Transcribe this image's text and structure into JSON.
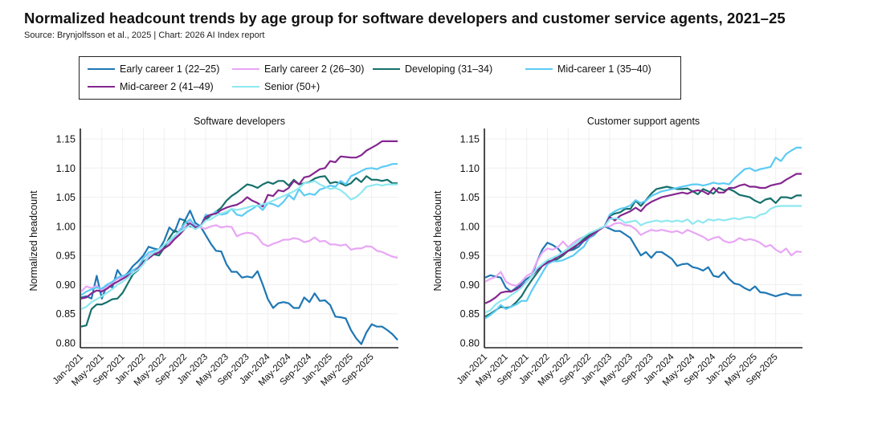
{
  "header": {
    "title": "Normalized headcount trends by age group for software developers and customer service agents, 2021–25",
    "subtitle": "Source: Brynjolfsson et al., 2025 | Chart: 2026 AI Index report"
  },
  "legend": {
    "placement": "top",
    "items": [
      {
        "label": "Early career 1 (22–25)",
        "color": "#1f77b4"
      },
      {
        "label": "Early career 2 (26–30)",
        "color": "#e8a6f5"
      },
      {
        "label": "Developing (31–34)",
        "color": "#16706b"
      },
      {
        "label": "Mid-career 1 (35–40)",
        "color": "#5ccbf5"
      },
      {
        "label": "Mid-career 2 (41–49)",
        "color": "#84278f"
      },
      {
        "label": "Senior (50+)",
        "color": "#8ee8f0"
      }
    ]
  },
  "chart_data": [
    {
      "type": "line",
      "title": "Software developers",
      "xlabel": "",
      "ylabel": "Normalized headcount",
      "ylim": [
        0.79,
        1.16
      ],
      "yticks": [
        "0.80",
        "0.85",
        "0.90",
        "0.95",
        "1.00",
        "1.05",
        "1.10",
        "1.15"
      ],
      "ytick_values": [
        0.8,
        0.85,
        0.9,
        0.95,
        1.0,
        1.05,
        1.1,
        1.15
      ],
      "xtick_labels": [
        "Jan-2021",
        "May-2021",
        "Sep-2021",
        "Jan-2022",
        "May-2022",
        "Sep-2022",
        "Jan-2023",
        "May-2023",
        "Sep-2023",
        "Jan-2024",
        "May-2024",
        "Sep-2024",
        "Jan-2025",
        "May-2025",
        "Sep-2025"
      ],
      "x_start": "Jan-2021",
      "x_end": "Dec-2025",
      "grid": true,
      "series": [
        {
          "name": "Early career 1 (22–25)",
          "values": [
            0.878,
            0.88,
            0.876,
            0.915,
            0.876,
            0.9,
            0.895,
            0.925,
            0.912,
            0.92,
            0.932,
            0.94,
            0.95,
            0.965,
            0.962,
            0.96,
            0.975,
            0.998,
            0.99,
            1.013,
            1.01,
            1.027,
            1.006,
            1.0,
            0.985,
            0.97,
            0.958,
            0.957,
            0.935,
            0.922,
            0.922,
            0.912,
            0.914,
            0.912,
            0.923,
            0.9,
            0.875,
            0.86,
            0.868,
            0.87,
            0.868,
            0.86,
            0.86,
            0.878,
            0.87,
            0.885,
            0.872,
            0.873,
            0.865,
            0.845,
            0.844,
            0.842,
            0.822,
            0.808,
            0.798,
            0.818,
            0.832,
            0.828,
            0.828,
            0.822,
            0.815,
            0.805
          ]
        },
        {
          "name": "Early career 2 (26–30)",
          "values": [
            0.888,
            0.897,
            0.894,
            0.898,
            0.89,
            0.896,
            0.903,
            0.91,
            0.912,
            0.915,
            0.92,
            0.928,
            0.935,
            0.95,
            0.955,
            0.958,
            0.965,
            0.972,
            0.98,
            0.995,
            0.998,
            1.01,
            1.002,
            0.998,
            0.996,
            1.0,
            1.002,
            0.998,
            1.0,
            0.999,
            0.983,
            0.987,
            0.989,
            0.988,
            0.982,
            0.97,
            0.966,
            0.97,
            0.973,
            0.977,
            0.977,
            0.98,
            0.978,
            0.973,
            0.975,
            0.981,
            0.974,
            0.975,
            0.969,
            0.969,
            0.967,
            0.969,
            0.96,
            0.962,
            0.962,
            0.966,
            0.965,
            0.958,
            0.956,
            0.952,
            0.948,
            0.946
          ]
        },
        {
          "name": "Developing (31–34)",
          "values": [
            0.828,
            0.83,
            0.858,
            0.866,
            0.866,
            0.87,
            0.875,
            0.876,
            0.886,
            0.902,
            0.918,
            0.925,
            0.94,
            0.945,
            0.952,
            0.95,
            0.963,
            0.98,
            0.993,
            0.988,
            1.01,
            1.0,
            0.998,
            1.0,
            1.012,
            1.018,
            1.025,
            1.032,
            1.044,
            1.052,
            1.058,
            1.065,
            1.072,
            1.07,
            1.066,
            1.072,
            1.076,
            1.073,
            1.078,
            1.078,
            1.07,
            1.08,
            1.072,
            1.074,
            1.076,
            1.082,
            1.085,
            1.086,
            1.074,
            1.076,
            1.074,
            1.07,
            1.074,
            1.083,
            1.076,
            1.086,
            1.08,
            1.08,
            1.078,
            1.08,
            1.074,
            1.074
          ]
        },
        {
          "name": "Mid-career 1 (35–40)",
          "values": [
            0.882,
            0.888,
            0.892,
            0.895,
            0.893,
            0.9,
            0.905,
            0.912,
            0.915,
            0.918,
            0.925,
            0.93,
            0.945,
            0.955,
            0.958,
            0.96,
            0.968,
            0.975,
            0.983,
            0.992,
            1.005,
            1.012,
            1.0,
            1.0,
            1.02,
            1.018,
            1.026,
            1.02,
            1.022,
            1.03,
            1.02,
            1.018,
            1.025,
            1.03,
            1.036,
            1.028,
            1.04,
            1.038,
            1.034,
            1.042,
            1.054,
            1.046,
            1.064,
            1.053,
            1.056,
            1.054,
            1.063,
            1.066,
            1.07,
            1.068,
            1.078,
            1.072,
            1.086,
            1.09,
            1.095,
            1.099,
            1.1,
            1.098,
            1.102,
            1.104,
            1.107,
            1.107
          ]
        },
        {
          "name": "Mid-career 2 (41–49)",
          "values": [
            0.876,
            0.878,
            0.885,
            0.89,
            0.888,
            0.893,
            0.9,
            0.905,
            0.91,
            0.915,
            0.92,
            0.928,
            0.938,
            0.945,
            0.952,
            0.955,
            0.962,
            0.968,
            0.978,
            0.986,
            0.996,
            1.005,
            0.998,
            1.0,
            1.016,
            1.02,
            1.022,
            1.028,
            1.032,
            1.035,
            1.037,
            1.042,
            1.05,
            1.044,
            1.04,
            1.034,
            1.054,
            1.052,
            1.062,
            1.06,
            1.066,
            1.078,
            1.072,
            1.084,
            1.086,
            1.092,
            1.098,
            1.1,
            1.112,
            1.11,
            1.12,
            1.119,
            1.118,
            1.118,
            1.122,
            1.13,
            1.135,
            1.14,
            1.146,
            1.146,
            1.146,
            1.146
          ]
        },
        {
          "name": "Senior (50+)",
          "values": [
            0.858,
            0.862,
            0.87,
            0.875,
            0.88,
            0.886,
            0.892,
            0.9,
            0.905,
            0.912,
            0.92,
            0.926,
            0.935,
            0.948,
            0.955,
            0.96,
            0.968,
            0.976,
            0.984,
            0.99,
            0.996,
            1.002,
            0.995,
            1.0,
            1.01,
            1.012,
            1.018,
            1.022,
            1.025,
            1.03,
            1.028,
            1.03,
            1.032,
            1.035,
            1.035,
            1.038,
            1.04,
            1.044,
            1.048,
            1.052,
            1.056,
            1.06,
            1.066,
            1.074,
            1.075,
            1.078,
            1.072,
            1.068,
            1.064,
            1.066,
            1.062,
            1.055,
            1.046,
            1.05,
            1.058,
            1.068,
            1.07,
            1.072,
            1.07,
            1.072,
            1.072,
            1.072
          ]
        }
      ]
    },
    {
      "type": "line",
      "title": "Customer support agents",
      "xlabel": "",
      "ylabel": "Normalized headcount",
      "ylim": [
        0.79,
        1.16
      ],
      "yticks": [
        "0.80",
        "0.85",
        "0.90",
        "0.95",
        "1.00",
        "1.05",
        "1.10",
        "1.15"
      ],
      "ytick_values": [
        0.8,
        0.85,
        0.9,
        0.95,
        1.0,
        1.05,
        1.1,
        1.15
      ],
      "xtick_labels": [
        "Jan-2021",
        "May-2021",
        "Sep-2021",
        "Jan-2022",
        "May-2022",
        "Sep-2022",
        "Jan-2023",
        "May-2023",
        "Sep-2023",
        "Jan-2024",
        "May-2024",
        "Sep-2024",
        "Jan-2025",
        "May-2025",
        "Sep-2025"
      ],
      "x_start": "Jan-2021",
      "x_end": "Dec-2025",
      "grid": true,
      "series": [
        {
          "name": "Early career 1 (22–25)",
          "values": [
            0.912,
            0.916,
            0.914,
            0.912,
            0.895,
            0.888,
            0.895,
            0.902,
            0.91,
            0.915,
            0.94,
            0.96,
            0.972,
            0.968,
            0.962,
            0.952,
            0.958,
            0.96,
            0.965,
            0.975,
            0.98,
            0.985,
            0.995,
            1.0,
            0.996,
            0.992,
            0.992,
            0.986,
            0.98,
            0.965,
            0.95,
            0.956,
            0.946,
            0.956,
            0.956,
            0.95,
            0.944,
            0.932,
            0.935,
            0.936,
            0.93,
            0.928,
            0.924,
            0.93,
            0.915,
            0.913,
            0.922,
            0.91,
            0.902,
            0.9,
            0.894,
            0.89,
            0.897,
            0.887,
            0.886,
            0.883,
            0.88,
            0.883,
            0.885,
            0.882,
            0.882,
            0.882
          ]
        },
        {
          "name": "Early career 2 (26–30)",
          "values": [
            0.905,
            0.91,
            0.913,
            0.922,
            0.905,
            0.9,
            0.898,
            0.905,
            0.915,
            0.92,
            0.94,
            0.955,
            0.962,
            0.96,
            0.964,
            0.974,
            0.964,
            0.972,
            0.978,
            0.982,
            0.985,
            0.99,
            0.995,
            1.0,
            1.0,
            1.005,
            1.006,
            1.002,
            1.001,
            0.995,
            0.985,
            0.99,
            0.994,
            0.992,
            0.994,
            0.992,
            0.99,
            0.992,
            0.988,
            0.994,
            0.99,
            0.986,
            0.982,
            0.976,
            0.98,
            0.982,
            0.975,
            0.972,
            0.974,
            0.98,
            0.976,
            0.978,
            0.976,
            0.972,
            0.965,
            0.968,
            0.96,
            0.955,
            0.962,
            0.95,
            0.957,
            0.956
          ]
        },
        {
          "name": "Developing (31–34)",
          "values": [
            0.845,
            0.85,
            0.856,
            0.862,
            0.86,
            0.862,
            0.87,
            0.88,
            0.895,
            0.908,
            0.92,
            0.932,
            0.94,
            0.94,
            0.944,
            0.95,
            0.958,
            0.962,
            0.97,
            0.978,
            0.985,
            0.99,
            0.995,
            1.0,
            1.018,
            1.022,
            1.024,
            1.03,
            1.03,
            1.044,
            1.035,
            1.045,
            1.056,
            1.064,
            1.066,
            1.068,
            1.066,
            1.064,
            1.064,
            1.065,
            1.06,
            1.055,
            1.064,
            1.06,
            1.056,
            1.066,
            1.062,
            1.064,
            1.06,
            1.054,
            1.052,
            1.05,
            1.044,
            1.04,
            1.046,
            1.048,
            1.04,
            1.05,
            1.05,
            1.048,
            1.053,
            1.053
          ]
        },
        {
          "name": "Mid-career 1 (35–40)",
          "values": [
            0.842,
            0.848,
            0.855,
            0.865,
            0.858,
            0.862,
            0.866,
            0.872,
            0.872,
            0.89,
            0.905,
            0.92,
            0.935,
            0.94,
            0.94,
            0.942,
            0.946,
            0.95,
            0.958,
            0.965,
            0.98,
            0.986,
            0.996,
            1.0,
            1.02,
            1.026,
            1.03,
            1.032,
            1.036,
            1.045,
            1.04,
            1.044,
            1.052,
            1.056,
            1.06,
            1.062,
            1.064,
            1.066,
            1.068,
            1.07,
            1.072,
            1.072,
            1.07,
            1.072,
            1.075,
            1.073,
            1.074,
            1.072,
            1.082,
            1.09,
            1.098,
            1.1,
            1.095,
            1.098,
            1.1,
            1.102,
            1.118,
            1.112,
            1.124,
            1.13,
            1.135,
            1.135
          ]
        },
        {
          "name": "Mid-career 2 (41–49)",
          "values": [
            0.868,
            0.872,
            0.878,
            0.886,
            0.888,
            0.888,
            0.892,
            0.898,
            0.905,
            0.915,
            0.925,
            0.932,
            0.938,
            0.942,
            0.948,
            0.952,
            0.958,
            0.964,
            0.97,
            0.975,
            0.982,
            0.988,
            0.994,
            1.0,
            1.016,
            1.01,
            1.018,
            1.022,
            1.026,
            1.032,
            1.026,
            1.036,
            1.042,
            1.046,
            1.05,
            1.052,
            1.054,
            1.056,
            1.058,
            1.056,
            1.06,
            1.062,
            1.06,
            1.055,
            1.066,
            1.058,
            1.058,
            1.066,
            1.066,
            1.07,
            1.072,
            1.068,
            1.068,
            1.066,
            1.066,
            1.07,
            1.072,
            1.074,
            1.08,
            1.085,
            1.09,
            1.09
          ]
        },
        {
          "name": "Senior (50+)",
          "values": [
            0.852,
            0.856,
            0.866,
            0.872,
            0.875,
            0.882,
            0.888,
            0.895,
            0.905,
            0.915,
            0.928,
            0.935,
            0.942,
            0.946,
            0.95,
            0.956,
            0.962,
            0.968,
            0.975,
            0.982,
            0.988,
            0.992,
            0.996,
            1.0,
            1.012,
            1.014,
            1.012,
            1.006,
            1.008,
            1.01,
            1.002,
            1.006,
            1.008,
            1.01,
            1.008,
            1.01,
            1.008,
            1.01,
            1.008,
            1.012,
            1.004,
            1.01,
            1.006,
            1.012,
            1.01,
            1.012,
            1.01,
            1.012,
            1.014,
            1.012,
            1.015,
            1.016,
            1.014,
            1.02,
            1.022,
            1.03,
            1.034,
            1.035,
            1.035,
            1.035,
            1.035,
            1.035
          ]
        }
      ]
    }
  ]
}
